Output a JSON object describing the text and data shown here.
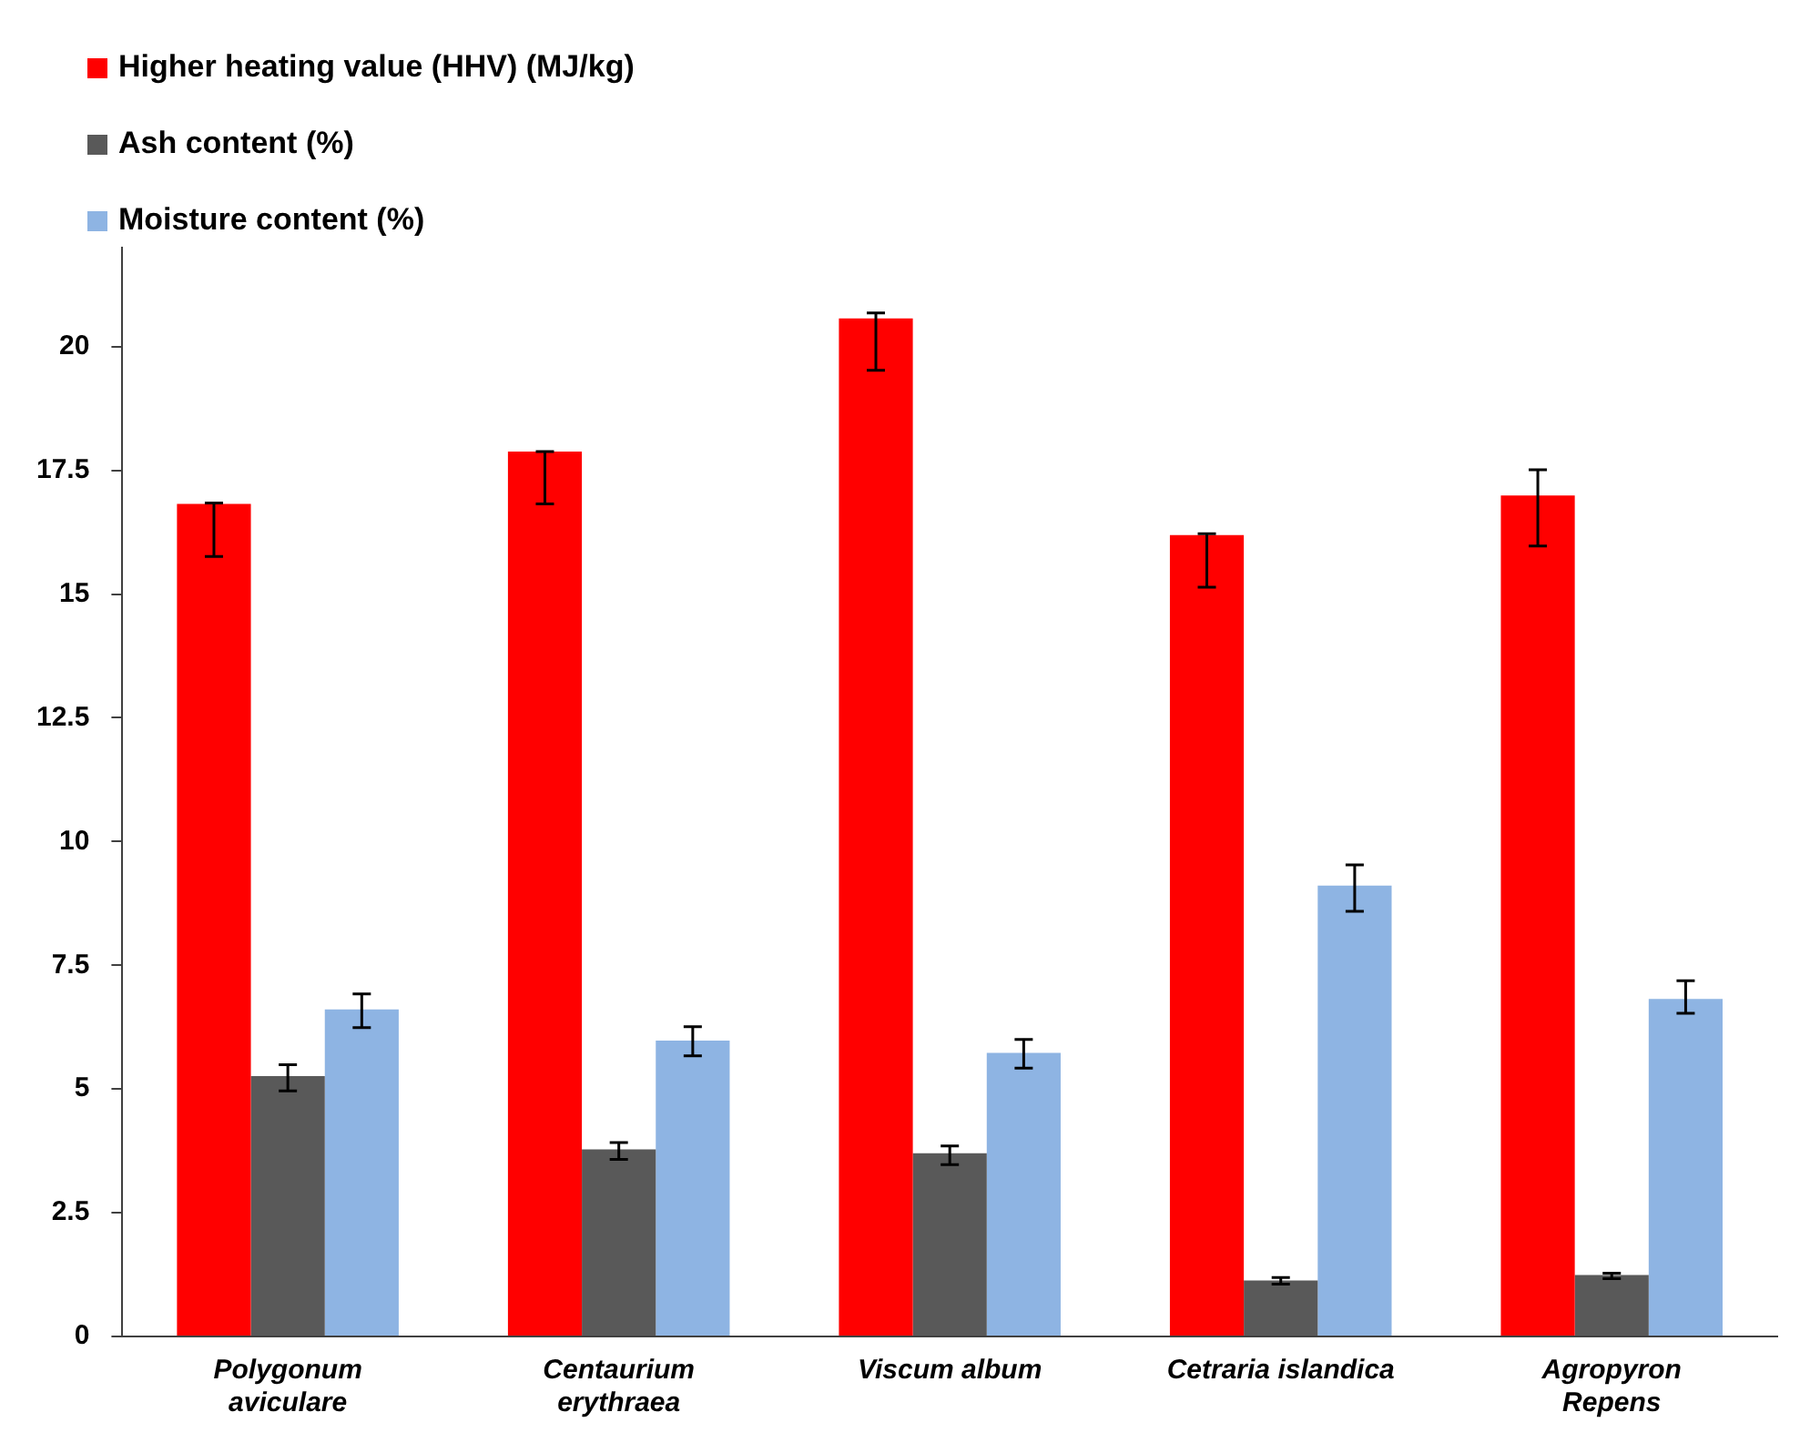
{
  "chart_data": {
    "type": "bar",
    "categories": [
      "Polygonum\naviculare",
      "Centaurium\nerythraea",
      "Viscum album",
      "Cetraria islandica",
      "Agropyron\nRepens"
    ],
    "series": [
      {
        "name": "Higher heating value (HHV) (MJ/kg)",
        "color": "#ff0000",
        "values": [
          16.82,
          17.88,
          20.57,
          16.19,
          16.99
        ],
        "errors": [
          [
            15.76,
            16.84
          ],
          [
            16.82,
            17.88
          ],
          [
            19.52,
            20.68
          ],
          [
            15.14,
            16.22
          ],
          [
            15.97,
            17.51
          ]
        ]
      },
      {
        "name": "Ash content (%)",
        "color": "#595959",
        "values": [
          5.26,
          3.78,
          3.7,
          1.13,
          1.24
        ],
        "errors": [
          [
            4.96,
            5.49
          ],
          [
            3.58,
            3.92
          ],
          [
            3.47,
            3.85
          ],
          [
            1.06,
            1.19
          ],
          [
            1.17,
            1.28
          ]
        ]
      },
      {
        "name": "Moisture content (%)",
        "color": "#8eb4e3",
        "values": [
          6.61,
          5.98,
          5.73,
          9.11,
          6.82
        ],
        "errors": [
          [
            6.24,
            6.92
          ],
          [
            5.67,
            6.26
          ],
          [
            5.42,
            6.0
          ],
          [
            8.59,
            9.53
          ],
          [
            6.53,
            7.19
          ]
        ]
      }
    ],
    "ylim": [
      0,
      22
    ],
    "yticks": [
      0,
      2.5,
      5,
      7.5,
      10,
      12.5,
      15,
      17.5,
      20
    ],
    "grid": false,
    "legend": "top left"
  }
}
